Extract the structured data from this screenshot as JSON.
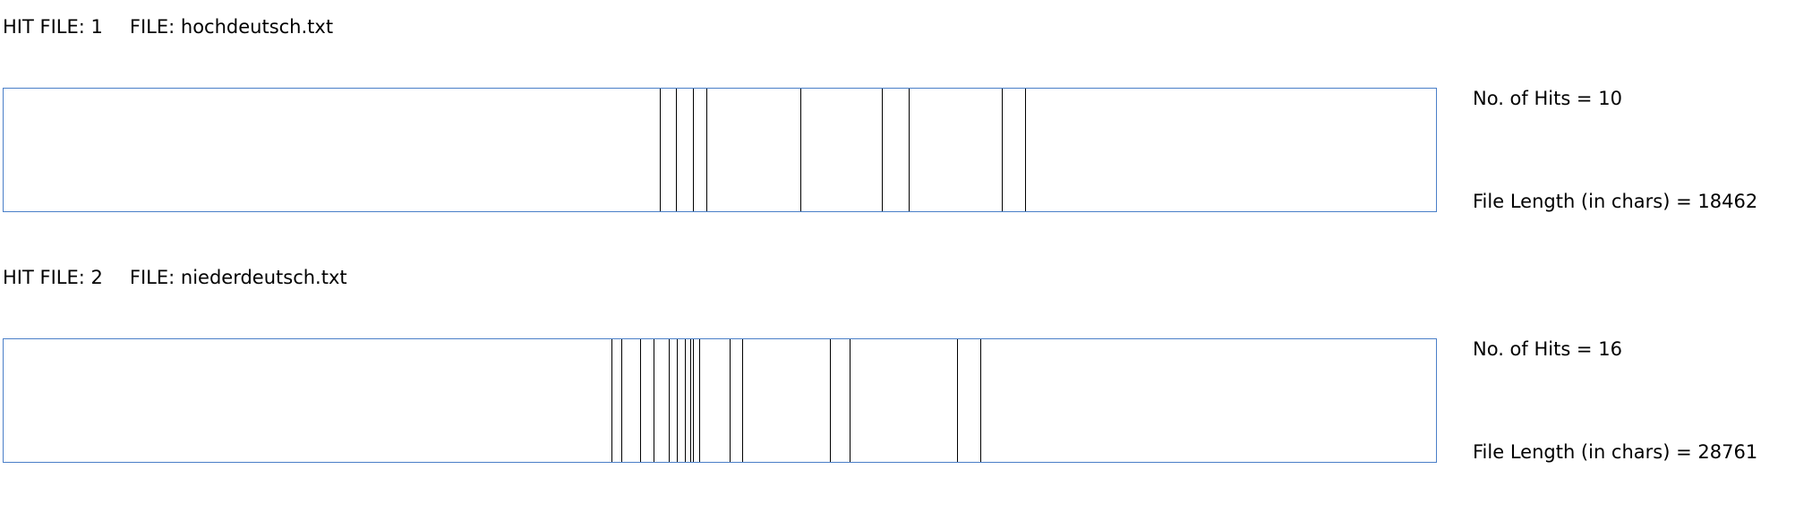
{
  "hit_files": [
    {
      "hit_label": "HIT FILE:",
      "hit_number": "1",
      "file_label": "FILE:",
      "file_name": "hochdeutsch.txt",
      "hits_text": "No. of Hits = 10",
      "length_text": "File Length (in chars) = 18462",
      "file_length": 18462,
      "hit_positions": [
        8462,
        8662,
        8889,
        9062,
        10265,
        11315,
        11662,
        12862,
        13162,
        13162
      ]
    },
    {
      "hit_label": "HIT FILE:",
      "hit_number": "2",
      "file_label": "FILE:",
      "file_name": "niederdeutsch.txt",
      "hits_text": "No. of Hits = 16",
      "length_text": "File Length (in chars) = 28761",
      "file_length": 28761,
      "hit_positions": [
        12200,
        12400,
        12780,
        13050,
        13350,
        13520,
        13680,
        13790,
        13850,
        13960,
        14580,
        14830,
        16590,
        16980,
        19150,
        19620
      ]
    }
  ],
  "colors": {
    "box_border": "#4a7fc8",
    "hit_line": "#000000"
  }
}
